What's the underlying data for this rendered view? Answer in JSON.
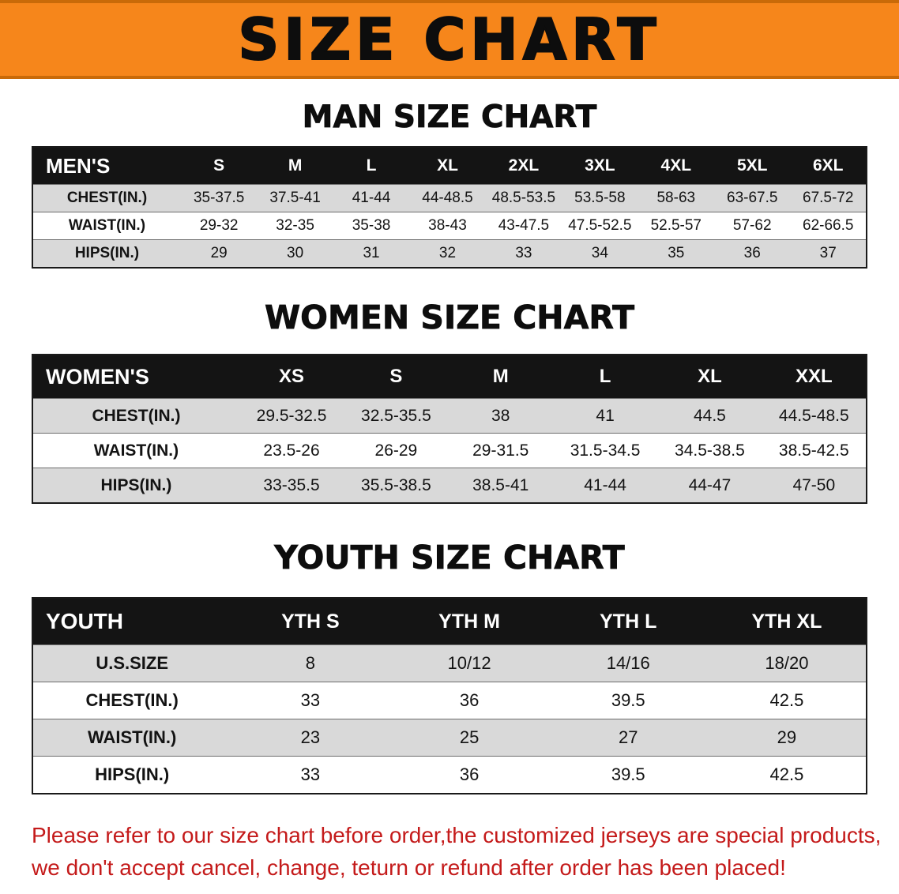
{
  "banner": {
    "title": "SIZE CHART",
    "bg_color": "#F6861B"
  },
  "colors": {
    "banner_bg": "#F6861B",
    "table_header_bg": "#141414",
    "row_stripe": "#D9D9D9",
    "disclaimer_red": "#C41A1A"
  },
  "sections": [
    {
      "id": "men",
      "heading": "MAN SIZE CHART",
      "table": {
        "header": [
          "MEN'S",
          "S",
          "M",
          "L",
          "XL",
          "2XL",
          "3XL",
          "4XL",
          "5XL",
          "6XL"
        ],
        "rows": [
          [
            "CHEST(IN.)",
            "35-37.5",
            "37.5-41",
            "41-44",
            "44-48.5",
            "48.5-53.5",
            "53.5-58",
            "58-63",
            "63-67.5",
            "67.5-72"
          ],
          [
            "WAIST(IN.)",
            "29-32",
            "32-35",
            "35-38",
            "38-43",
            "43-47.5",
            "47.5-52.5",
            "52.5-57",
            "57-62",
            "62-66.5"
          ],
          [
            "HIPS(IN.)",
            "29",
            "30",
            "31",
            "32",
            "33",
            "34",
            "35",
            "36",
            "37"
          ]
        ]
      }
    },
    {
      "id": "women",
      "heading": "WOMEN SIZE CHART",
      "table": {
        "header": [
          "WOMEN'S",
          "XS",
          "S",
          "M",
          "L",
          "XL",
          "XXL"
        ],
        "rows": [
          [
            "CHEST(IN.)",
            "29.5-32.5",
            "32.5-35.5",
            "38",
            "41",
            "44.5",
            "44.5-48.5"
          ],
          [
            "WAIST(IN.)",
            "23.5-26",
            "26-29",
            "29-31.5",
            "31.5-34.5",
            "34.5-38.5",
            "38.5-42.5"
          ],
          [
            "HIPS(IN.)",
            "33-35.5",
            "35.5-38.5",
            "38.5-41",
            "41-44",
            "44-47",
            "47-50"
          ]
        ]
      }
    },
    {
      "id": "youth",
      "heading": "YOUTH SIZE CHART",
      "table": {
        "header": [
          "YOUTH",
          "YTH S",
          "YTH M",
          "YTH L",
          "YTH XL"
        ],
        "rows": [
          [
            "U.S.SIZE",
            "8",
            "10/12",
            "14/16",
            "18/20"
          ],
          [
            "CHEST(IN.)",
            "33",
            "36",
            "39.5",
            "42.5"
          ],
          [
            "WAIST(IN.)",
            "23",
            "25",
            "27",
            "29"
          ],
          [
            "HIPS(IN.)",
            "33",
            "36",
            "39.5",
            "42.5"
          ]
        ]
      }
    }
  ],
  "disclaimer": {
    "lines": [
      "Please refer to our size chart before order,the customized jerseys are special products,",
      "we don't accept cancel, change, teturn or refund after order has been placed!"
    ]
  }
}
